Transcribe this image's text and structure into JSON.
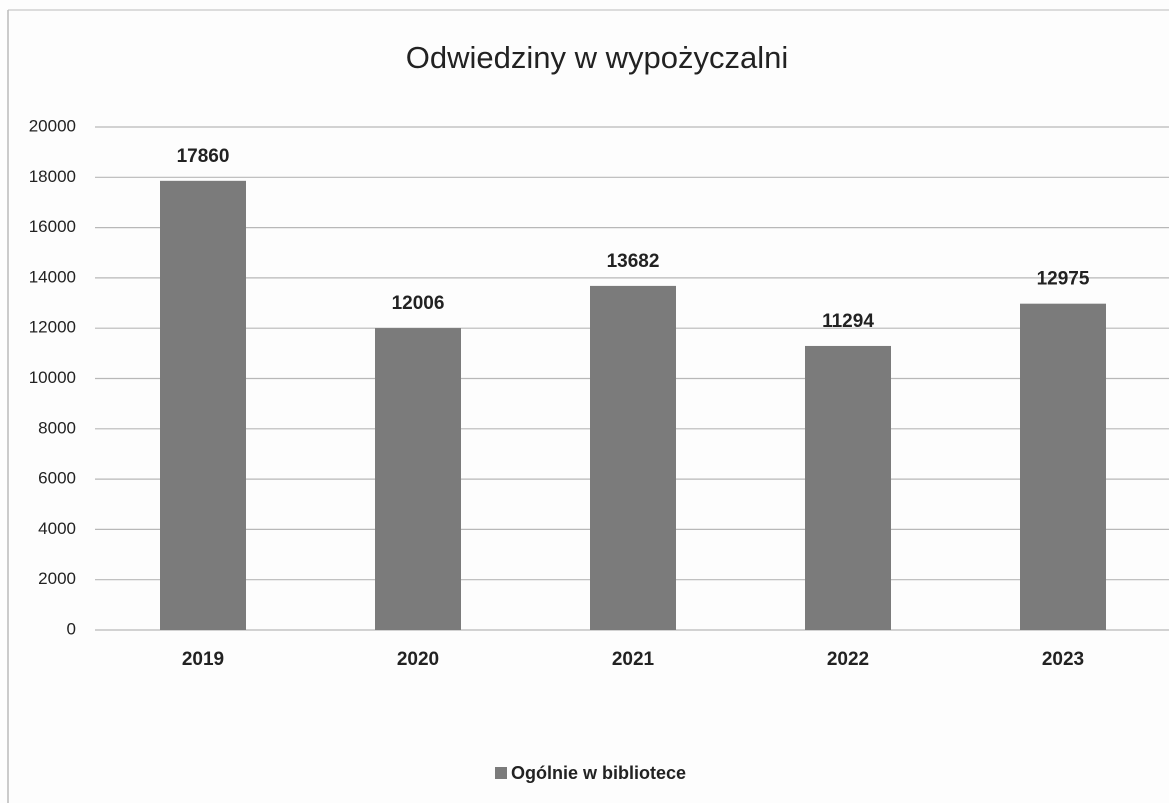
{
  "chart_data": {
    "type": "bar",
    "title": "Odwiedziny w wypożyczalni",
    "categories": [
      "2019",
      "2020",
      "2021",
      "2022",
      "2023"
    ],
    "series": [
      {
        "name": "Ogólnie w bibliotece",
        "color": "#7b7b7b",
        "values": [
          17860,
          12006,
          13682,
          11294,
          12975
        ]
      }
    ],
    "ylim": [
      0,
      20000
    ],
    "yticks": [
      0,
      2000,
      4000,
      6000,
      8000,
      10000,
      12000,
      14000,
      16000,
      18000,
      20000
    ],
    "grid": true,
    "legend": "bottom"
  }
}
